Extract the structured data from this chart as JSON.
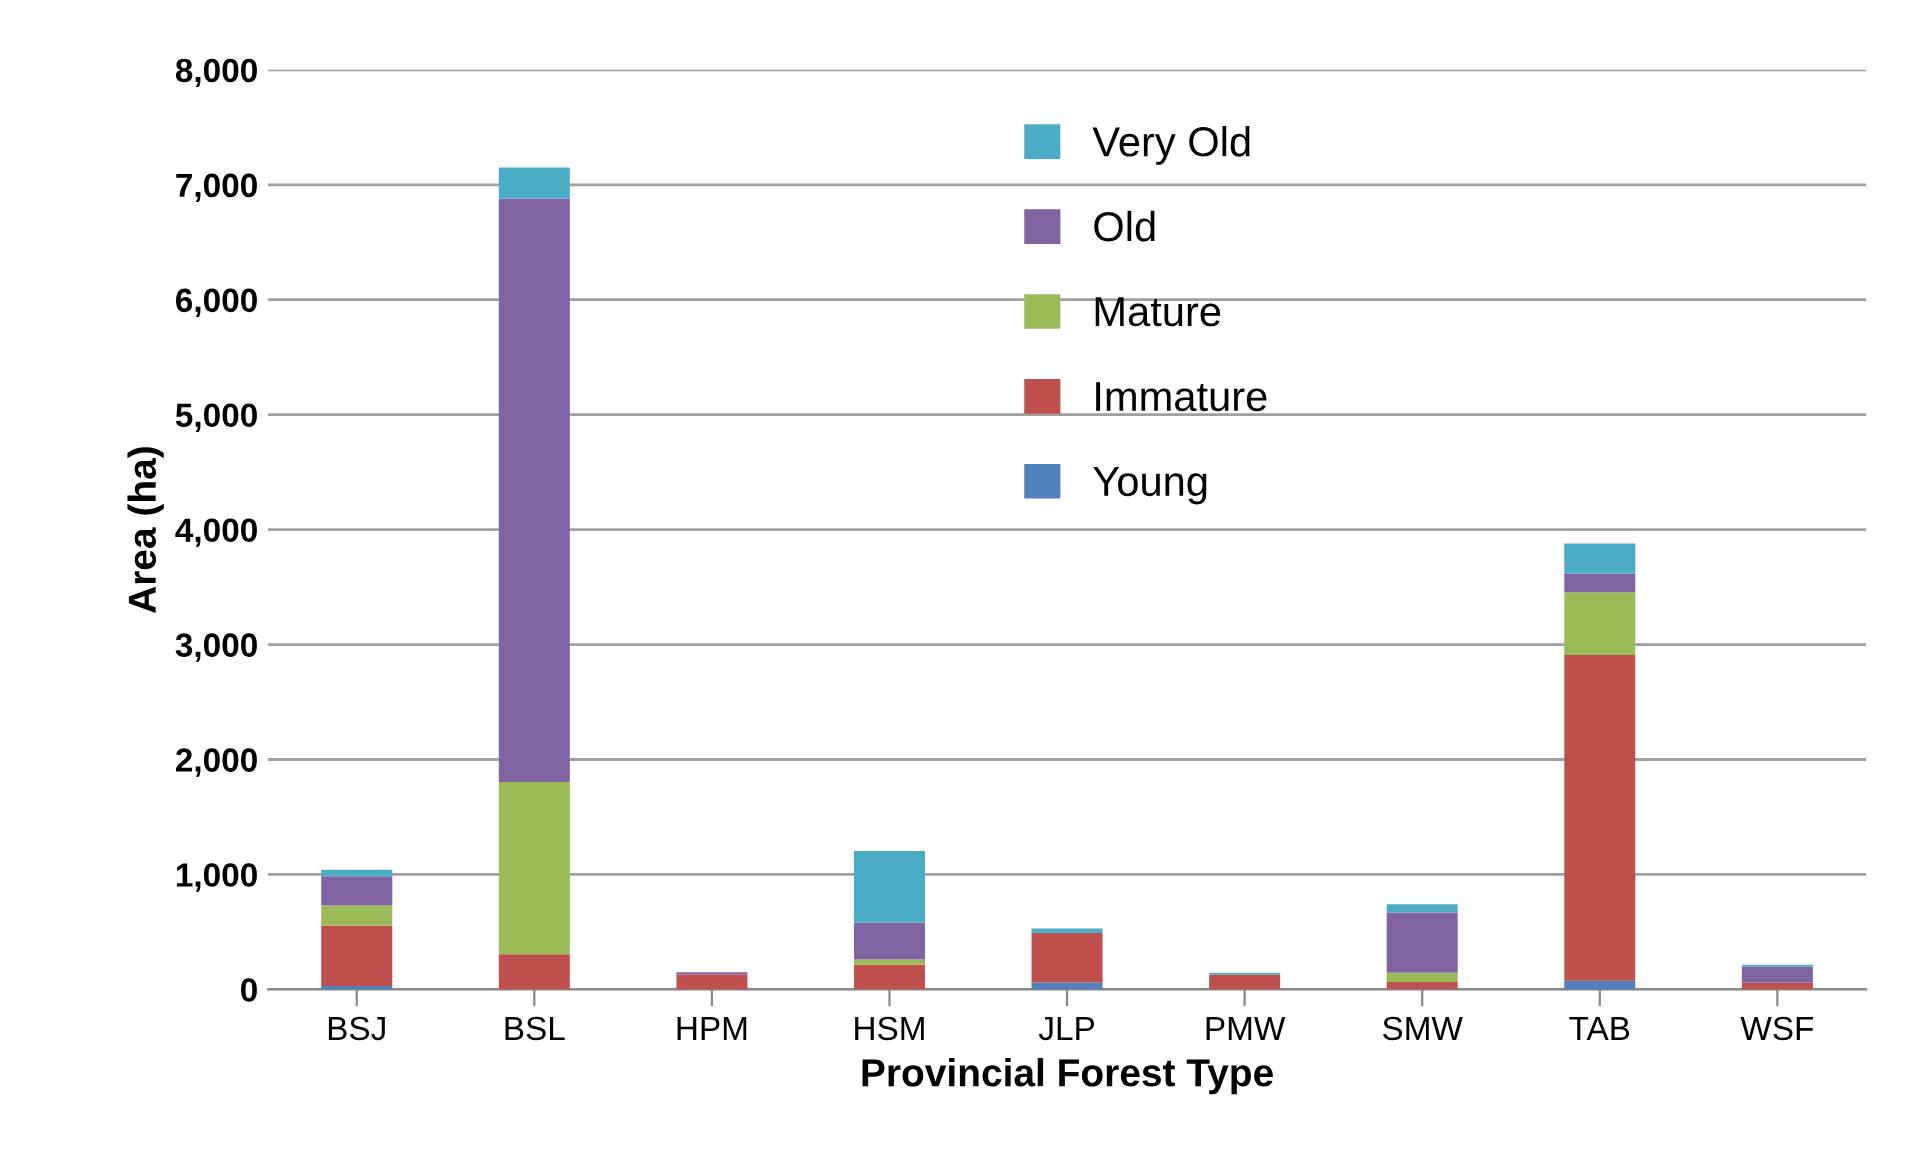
{
  "chart_data": {
    "type": "bar",
    "stacked": true,
    "xlabel": "Provincial Forest Type",
    "ylabel": "Area (ha)",
    "categories": [
      "BSJ",
      "BSL",
      "HPM",
      "HSM",
      "JLP",
      "PMW",
      "SMW",
      "TAB",
      "WSF"
    ],
    "series": [
      {
        "name": "Young",
        "color": "#4f81bd",
        "values": [
          30,
          0,
          0,
          0,
          60,
          0,
          0,
          75,
          0
        ]
      },
      {
        "name": "Immature",
        "color": "#c0504d",
        "values": [
          525,
          305,
          130,
          215,
          430,
          130,
          65,
          2835,
          60
        ]
      },
      {
        "name": "Mature",
        "color": "#9bbb59",
        "values": [
          175,
          1500,
          0,
          45,
          0,
          0,
          80,
          545,
          0
        ]
      },
      {
        "name": "Old",
        "color": "#8064a2",
        "values": [
          255,
          5075,
          20,
          320,
          0,
          0,
          525,
          160,
          140
        ]
      },
      {
        "name": "Very Old",
        "color": "#4bacc6",
        "values": [
          55,
          270,
          0,
          625,
          40,
          15,
          70,
          265,
          15
        ]
      }
    ],
    "ylim": [
      0,
      8000
    ],
    "yticks": [
      {
        "value": 0,
        "label": "0"
      },
      {
        "value": 1000,
        "label": "1,000"
      },
      {
        "value": 2000,
        "label": "2,000"
      },
      {
        "value": 3000,
        "label": "3,000"
      },
      {
        "value": 4000,
        "label": "4,000"
      },
      {
        "value": 5000,
        "label": "5,000"
      },
      {
        "value": 6000,
        "label": "6,000"
      },
      {
        "value": 7000,
        "label": "7,000"
      },
      {
        "value": 8000,
        "label": "8,000"
      }
    ],
    "grid": "y",
    "legend": "top"
  }
}
